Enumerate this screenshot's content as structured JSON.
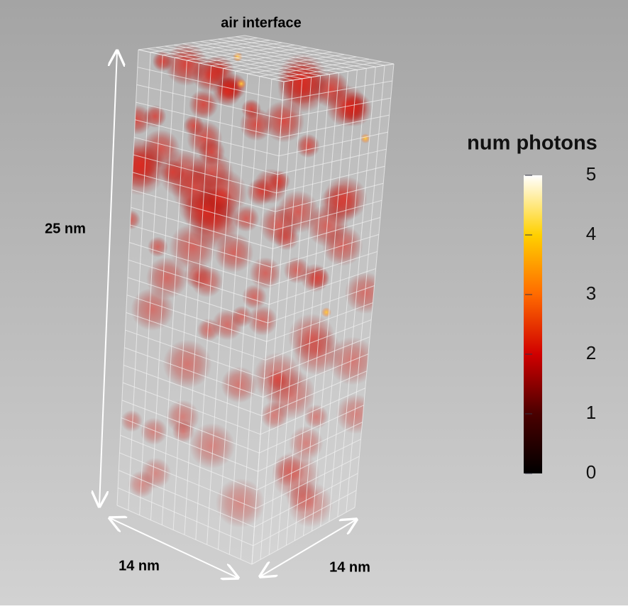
{
  "labels": {
    "top": "air interface",
    "height": "25 nm",
    "width_left": "14 nm",
    "width_right": "14 nm"
  },
  "colorbar": {
    "title": "num photons",
    "range": [
      0,
      5
    ],
    "ticks": [
      0,
      1,
      2,
      3,
      4,
      5
    ]
  }
}
